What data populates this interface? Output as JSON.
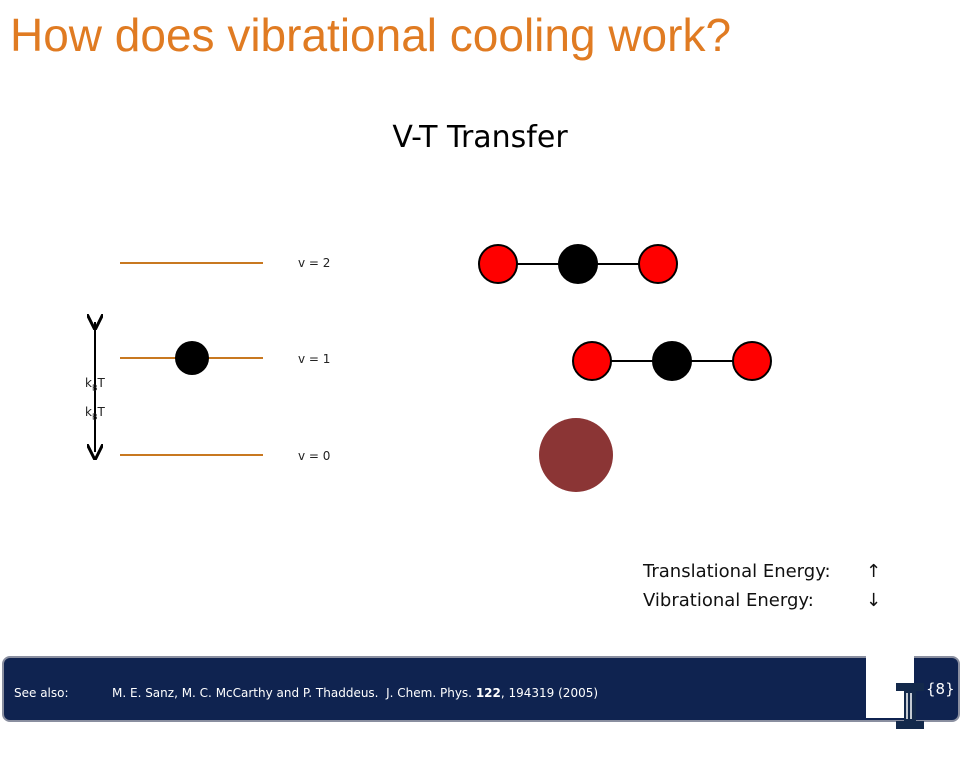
{
  "header": {
    "title": "How does vibrational cooling work?",
    "subtitle": "V-T Transfer"
  },
  "levels": [
    "v = 2",
    "v = 1",
    "v = 0"
  ],
  "thermal_labels": [
    {
      "k": "k",
      "sub": "B",
      "rest": "T"
    },
    {
      "k": "k",
      "sub": "B",
      "rest": "T"
    }
  ],
  "energy": [
    {
      "label": "Translational Energy:",
      "arrow": "↑"
    },
    {
      "label": "Vibrational Energy:",
      "arrow": "↓"
    }
  ],
  "footer": {
    "see_also": "See also:",
    "citation_start": "M. E. Sanz, M. C. McCarthy and P. Thaddeus.  J. Chem. Phys. ",
    "volume": "122",
    "citation_end": ", 194319 (2005)",
    "page": "{8}"
  }
}
